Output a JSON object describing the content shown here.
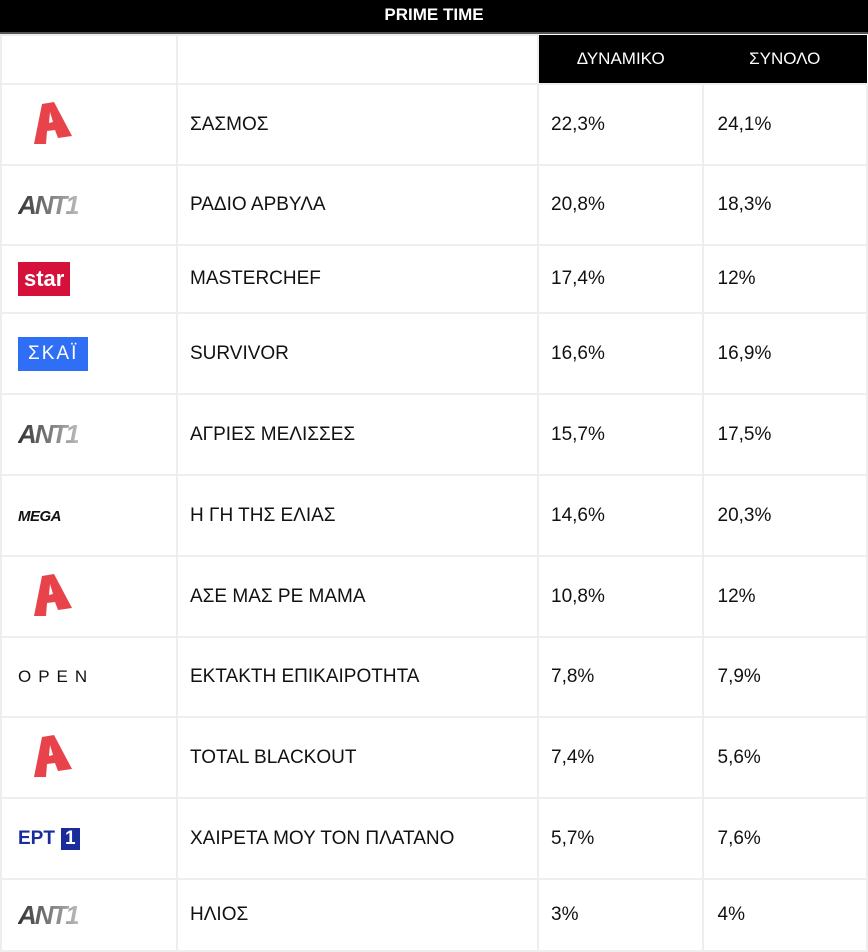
{
  "title": "PRIME TIME",
  "columns": [
    "",
    "",
    "ΔΥΝΑΜΙΚΟ",
    "ΣΥΝΟΛΟ"
  ],
  "colors": {
    "alpha": "#e8424a",
    "star": "#d5103a",
    "skai": "#2f6ff5",
    "ert": "#1a2b9a"
  },
  "rows": [
    {
      "channel": "alpha",
      "logo": "A",
      "show": "ΣΑΣΜΟΣ",
      "dynamiko": "22,3%",
      "synolo": "24,1%"
    },
    {
      "channel": "ant1",
      "logo": "ANT1",
      "show": "ΡΑΔΙΟ ΑΡΒΥΛΑ",
      "dynamiko": "20,8%",
      "synolo": "18,3%"
    },
    {
      "channel": "star",
      "logo": "star",
      "show": "MASTERCHEF",
      "dynamiko": "17,4%",
      "synolo": "12%"
    },
    {
      "channel": "skai",
      "logo": "ΣΚΑΪ",
      "show": "SURVIVOR",
      "dynamiko": "16,6%",
      "synolo": "16,9%"
    },
    {
      "channel": "ant1",
      "logo": "ANT1",
      "show": "ΑΓΡΙΕΣ ΜΕΛΙΣΣΕΣ",
      "dynamiko": "15,7%",
      "synolo": "17,5%"
    },
    {
      "channel": "mega",
      "logo": "MEGA",
      "show": "Η ΓΗ ΤΗΣ ΕΛΙΑΣ",
      "dynamiko": "14,6%",
      "synolo": "20,3%"
    },
    {
      "channel": "alpha",
      "logo": "A",
      "show": "ΑΣΕ ΜΑΣ ΡΕ ΜΑΜΑ",
      "dynamiko": "10,8%",
      "synolo": "12%"
    },
    {
      "channel": "open",
      "logo": "OPEN",
      "show": "ΕΚΤΑΚΤΗ ΕΠΙΚΑΙΡΟΤΗΤΑ",
      "dynamiko": "7,8%",
      "synolo": "7,9%"
    },
    {
      "channel": "alpha",
      "logo": "A",
      "show": "TOTAL BLACKOUT",
      "dynamiko": "7,4%",
      "synolo": "5,6%"
    },
    {
      "channel": "ert1",
      "logo": "ΕΡΤ 1",
      "show": "ΧΑΙΡΕΤΑ ΜΟΥ ΤΟΝ ΠΛΑΤΑΝΟ",
      "dynamiko": "5,7%",
      "synolo": "7,6%"
    },
    {
      "channel": "ant1",
      "logo": "ANT1",
      "show": "ΗΛΙΟΣ",
      "dynamiko": "3%",
      "synolo": "4%"
    }
  ]
}
